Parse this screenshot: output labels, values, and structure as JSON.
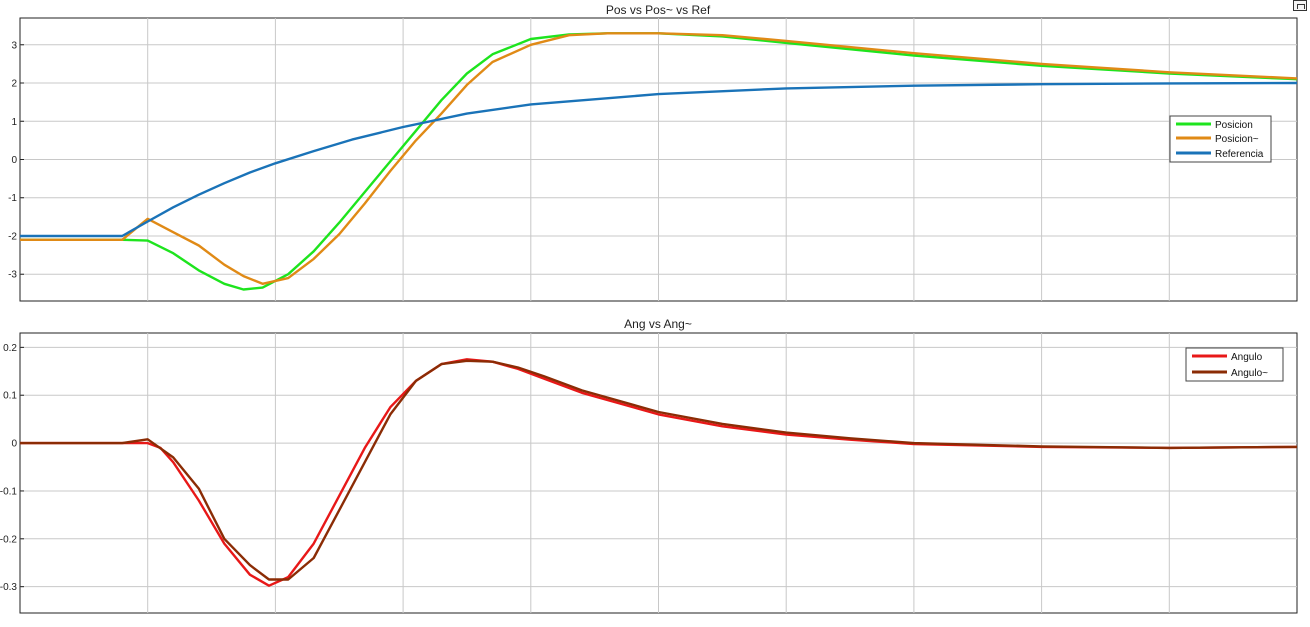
{
  "toolbar": {
    "undock_icon": "undock-icon"
  },
  "colors": {
    "background": "#ffffff",
    "grid": "#c8c8c8",
    "axis": "#222222",
    "posicion": "#1ee41e",
    "posicion_tilde": "#e08a16",
    "referencia": "#1a73b8",
    "angulo": "#e81818",
    "angulo_tilde": "#8b2c05"
  },
  "chart_data": [
    {
      "type": "line",
      "title": "Pos vs Pos~ vs Ref",
      "xlabel": "",
      "ylabel": "",
      "xlim": [
        0,
        10
      ],
      "ylim": [
        -3.7,
        3.7
      ],
      "yticks": [
        3,
        2,
        1,
        0,
        -1,
        -2,
        -3
      ],
      "ytick_labels": [
        "3",
        "2",
        "1",
        "0",
        "-1",
        "-2",
        "-3"
      ],
      "xgrid": [
        1,
        2,
        3,
        4,
        5,
        6,
        7,
        8,
        9
      ],
      "grid": true,
      "legend_position": "right",
      "series": [
        {
          "name": "Posicion",
          "color": "#1ee41e",
          "x": [
            0,
            0.8,
            1.0,
            1.2,
            1.4,
            1.6,
            1.75,
            1.9,
            2.1,
            2.3,
            2.5,
            2.7,
            2.9,
            3.1,
            3.3,
            3.5,
            3.7,
            4.0,
            4.3,
            4.6,
            5.0,
            5.5,
            6.0,
            7.0,
            8.0,
            9.0,
            10.0
          ],
          "y": [
            -2.1,
            -2.1,
            -2.12,
            -2.45,
            -2.9,
            -3.25,
            -3.4,
            -3.35,
            -3.0,
            -2.4,
            -1.65,
            -0.85,
            -0.05,
            0.75,
            1.55,
            2.25,
            2.75,
            3.15,
            3.27,
            3.3,
            3.3,
            3.22,
            3.05,
            2.72,
            2.45,
            2.25,
            2.1
          ]
        },
        {
          "name": "Posicion~",
          "color": "#e08a16",
          "x": [
            0,
            0.8,
            1.0,
            1.2,
            1.4,
            1.6,
            1.75,
            1.9,
            2.1,
            2.3,
            2.5,
            2.7,
            2.9,
            3.1,
            3.3,
            3.5,
            3.7,
            4.0,
            4.3,
            4.6,
            5.0,
            5.5,
            6.0,
            7.0,
            8.0,
            9.0,
            10.0
          ],
          "y": [
            -2.1,
            -2.1,
            -1.55,
            -1.9,
            -2.25,
            -2.75,
            -3.05,
            -3.25,
            -3.1,
            -2.6,
            -1.95,
            -1.15,
            -0.3,
            0.5,
            1.2,
            1.95,
            2.55,
            3.0,
            3.25,
            3.3,
            3.3,
            3.25,
            3.1,
            2.78,
            2.5,
            2.28,
            2.12
          ]
        },
        {
          "name": "Referencia",
          "color": "#1a73b8",
          "x": [
            0,
            0.8,
            1.0,
            1.2,
            1.4,
            1.6,
            1.8,
            2.0,
            2.3,
            2.6,
            3.0,
            3.5,
            4.0,
            5.0,
            6.0,
            7.0,
            8.0,
            9.0,
            10.0
          ],
          "y": [
            -2.0,
            -2.0,
            -1.62,
            -1.25,
            -0.92,
            -0.62,
            -0.34,
            -0.1,
            0.22,
            0.52,
            0.85,
            1.2,
            1.44,
            1.71,
            1.86,
            1.93,
            1.97,
            1.99,
            2.0
          ]
        }
      ]
    },
    {
      "type": "line",
      "title": "Ang vs Ang~",
      "xlabel": "",
      "ylabel": "",
      "xlim": [
        0,
        10
      ],
      "ylim": [
        -0.355,
        0.23
      ],
      "yticks": [
        0.2,
        0.1,
        0,
        -0.1,
        -0.2,
        -0.3
      ],
      "ytick_labels": [
        "0.2",
        "0.1",
        "0",
        "-0.1",
        "-0.2",
        "-0.3"
      ],
      "xgrid": [
        1,
        2,
        3,
        4,
        5,
        6,
        7,
        8,
        9
      ],
      "grid": true,
      "legend_position": "top-right",
      "series": [
        {
          "name": "Angulo",
          "color": "#e81818",
          "x": [
            0,
            0.8,
            1.0,
            1.1,
            1.2,
            1.4,
            1.6,
            1.8,
            1.95,
            2.1,
            2.3,
            2.5,
            2.7,
            2.9,
            3.1,
            3.3,
            3.5,
            3.7,
            3.9,
            4.1,
            4.4,
            5.0,
            5.5,
            6.0,
            6.5,
            7.0,
            8.0,
            9.0,
            10.0
          ],
          "y": [
            0,
            0,
            0,
            -0.01,
            -0.04,
            -0.12,
            -0.21,
            -0.275,
            -0.298,
            -0.28,
            -0.21,
            -0.11,
            -0.01,
            0.075,
            0.13,
            0.165,
            0.175,
            0.17,
            0.155,
            0.135,
            0.105,
            0.06,
            0.035,
            0.018,
            0.007,
            -0.002,
            -0.008,
            -0.01,
            -0.008
          ]
        },
        {
          "name": "Angulo~",
          "color": "#8b2c05",
          "x": [
            0,
            0.8,
            1.0,
            1.2,
            1.4,
            1.6,
            1.8,
            1.95,
            2.1,
            2.3,
            2.5,
            2.7,
            2.9,
            3.1,
            3.3,
            3.5,
            3.7,
            3.9,
            4.1,
            4.4,
            5.0,
            5.5,
            6.0,
            6.5,
            7.0,
            8.0,
            9.0,
            10.0
          ],
          "y": [
            0,
            0,
            0.008,
            -0.03,
            -0.095,
            -0.2,
            -0.255,
            -0.285,
            -0.285,
            -0.24,
            -0.14,
            -0.04,
            0.06,
            0.13,
            0.165,
            0.172,
            0.17,
            0.158,
            0.14,
            0.11,
            0.065,
            0.04,
            0.022,
            0.01,
            0.0,
            -0.007,
            -0.01,
            -0.008
          ]
        }
      ]
    }
  ]
}
